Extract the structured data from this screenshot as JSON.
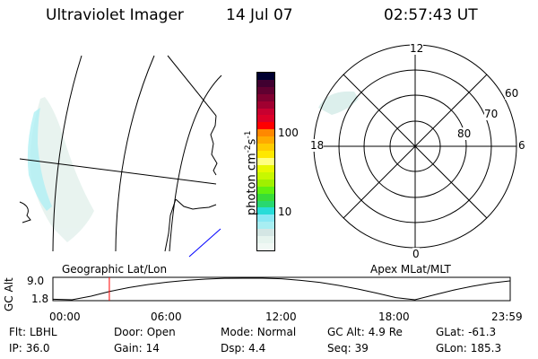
{
  "header": {
    "instrument": "Ultraviolet Imager",
    "date": "14 Jul 07",
    "time": "02:57:43 UT"
  },
  "colorbar": {
    "label": "photon cm",
    "exp1": "-2",
    "mid": "s",
    "exp2": "-1",
    "ticks": [
      "100",
      "10"
    ],
    "colors": [
      "#f0f8f4",
      "#e6f4ee",
      "#d4e6e4",
      "#a8eef2",
      "#8ae8f4",
      "#28dcd8",
      "#28d870",
      "#38dc38",
      "#60f010",
      "#a0f000",
      "#c8f800",
      "#e8f800",
      "#ffff80",
      "#ffe800",
      "#ffcc00",
      "#ffaa00",
      "#ff8800",
      "#ff0000",
      "#dc0028",
      "#c80030",
      "#a00030",
      "#800030",
      "#600030",
      "#400030",
      "#000030"
    ]
  },
  "polar": {
    "mlt_labels": [
      "12",
      "6",
      "0",
      "18"
    ],
    "lat_labels": [
      "60",
      "70",
      "80"
    ]
  },
  "orbit_panel": {
    "left_label": "Geographic Lat/Lon",
    "right_label": "Apex MLat/MLT",
    "ylabel": "GC Alt"
  },
  "chart_data": {
    "type": "line",
    "ylabel": "GC Alt",
    "ylim": [
      1.8,
      9.0
    ],
    "ytick_labels": [
      "9.0",
      "1.8"
    ],
    "xtick_labels": [
      "00:00",
      "06:00",
      "12:00",
      "18:00",
      "23:59"
    ],
    "x_hours": [
      0,
      1,
      2,
      3,
      4,
      5,
      6,
      7,
      8,
      9,
      10,
      11,
      12,
      13,
      14,
      15,
      16,
      17,
      18,
      19,
      20,
      21,
      22,
      23,
      23.98
    ],
    "values": [
      2.0,
      1.8,
      3.0,
      4.6,
      5.9,
      6.9,
      7.7,
      8.3,
      8.7,
      8.95,
      9.0,
      9.0,
      8.8,
      8.3,
      7.6,
      6.6,
      5.4,
      4.0,
      2.5,
      1.8,
      3.4,
      5.0,
      6.3,
      7.4,
      8.1
    ],
    "current_time_hours": 2.962,
    "line_color": "#000000",
    "marker_color": "#ff0000"
  },
  "status": [
    {
      "label": "Flt:",
      "value": "LBHL"
    },
    {
      "label": "Door:",
      "value": "Open"
    },
    {
      "label": "Mode:",
      "value": "Normal"
    },
    {
      "label": "GC Alt:",
      "value": "4.9 Re"
    },
    {
      "label": "GLat:",
      "value": "-61.3"
    },
    {
      "label": "IP:",
      "value": "36.0"
    },
    {
      "label": "Gain:",
      "value": "14"
    },
    {
      "label": "Dsp:",
      "value": "4.4"
    },
    {
      "label": "Seq:",
      "value": "39"
    },
    {
      "label": "GLon:",
      "value": "185.3"
    }
  ]
}
